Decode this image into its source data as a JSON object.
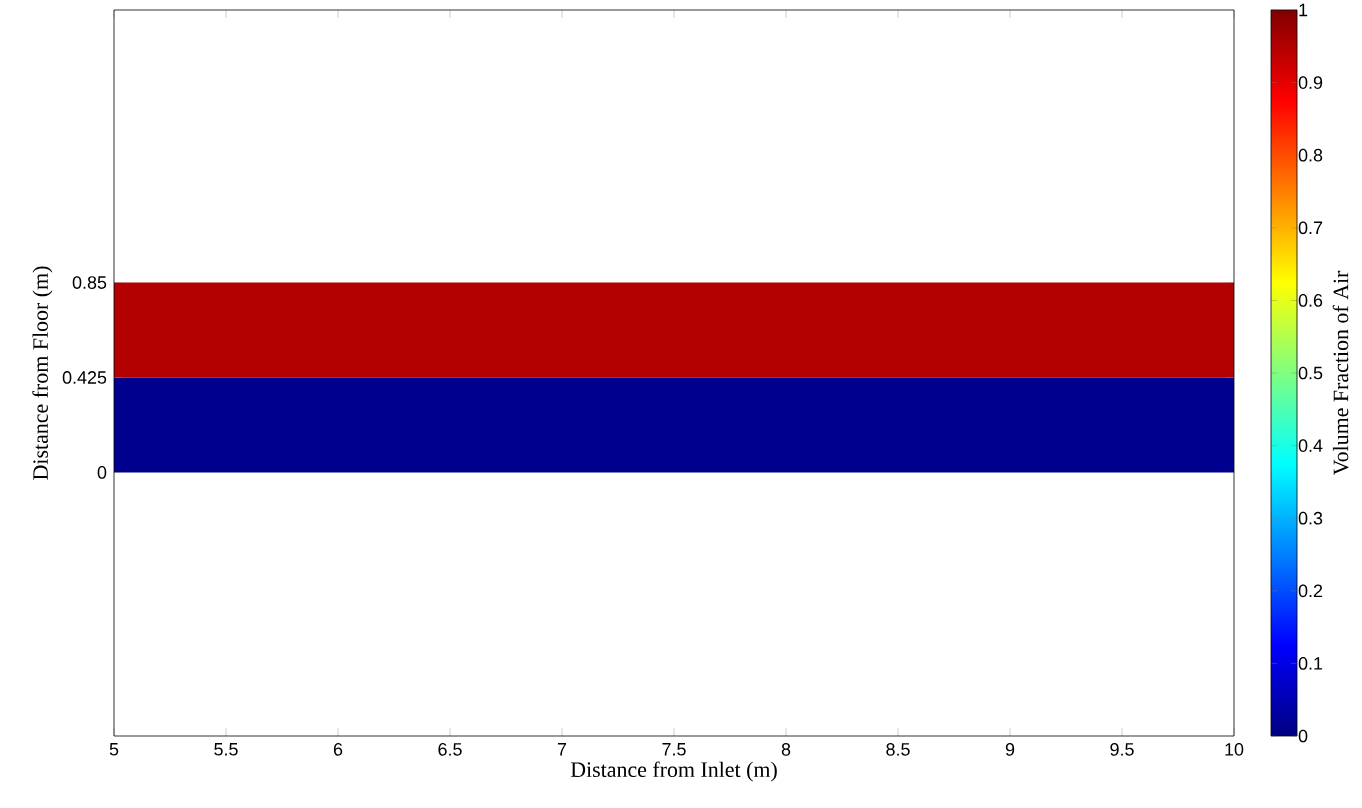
{
  "chart_data": {
    "type": "area",
    "stacked": true,
    "xlabel": "Distance from Inlet (m)",
    "ylabel": "Distance from Floor (m)",
    "clabel": "Volume Fraction of Air",
    "x": [
      5,
      10
    ],
    "series": [
      {
        "color": "#00008f",
        "values": [
          0.425,
          0.425
        ]
      },
      {
        "color": "#b30000",
        "values": [
          0.425,
          0.425
        ]
      }
    ],
    "clim": [
      0,
      1
    ],
    "cticks": [
      0,
      0.1,
      0.2,
      0.3,
      0.4,
      0.5,
      0.6,
      0.7,
      0.8,
      0.9,
      1
    ],
    "xlim": [
      5,
      10
    ],
    "ylim": [
      -1.18,
      2.07
    ],
    "xticks": [
      5,
      5.5,
      6,
      6.5,
      7,
      7.5,
      8,
      8.5,
      9,
      9.5,
      10
    ],
    "yticks": [
      0,
      0.425,
      0.85
    ]
  }
}
